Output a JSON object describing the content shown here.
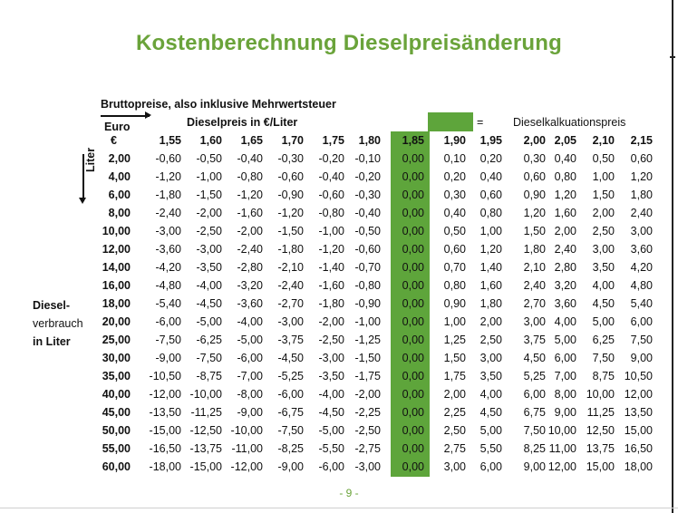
{
  "title": "Kostenberechnung Dieselpreisänderung",
  "subtitle": "Bruttopreise, also inklusive Mehrwertsteuer",
  "euro_label": "Euro",
  "euro_sign": "€",
  "price_label": "Dieselpreis in €/Liter",
  "legend": {
    "equals": "=",
    "text": "Dieselkalkuationspreis",
    "color": "#5ea53b"
  },
  "liter_label": "Liter",
  "row_label": {
    "line1": "Diesel-",
    "line2": "verbrauch",
    "line3": "in Liter"
  },
  "title_color": "#6aa33a",
  "footer": "- 9 -",
  "price_columns": [
    "1,55",
    "1,60",
    "1,65",
    "1,70",
    "1,75",
    "1,80",
    "1,85",
    "1,90",
    "1,95",
    "2,00",
    "2,05",
    "2,10",
    "2,15"
  ],
  "highlight_price": "1,85",
  "rows": [
    {
      "liter": "2,00",
      "values": [
        "-0,60",
        "-0,50",
        "-0,40",
        "-0,30",
        "-0,20",
        "-0,10",
        "0,00",
        "0,10",
        "0,20",
        "0,30",
        "0,40",
        "0,50",
        "0,60"
      ]
    },
    {
      "liter": "4,00",
      "values": [
        "-1,20",
        "-1,00",
        "-0,80",
        "-0,60",
        "-0,40",
        "-0,20",
        "0,00",
        "0,20",
        "0,40",
        "0,60",
        "0,80",
        "1,00",
        "1,20"
      ]
    },
    {
      "liter": "6,00",
      "values": [
        "-1,80",
        "-1,50",
        "-1,20",
        "-0,90",
        "-0,60",
        "-0,30",
        "0,00",
        "0,30",
        "0,60",
        "0,90",
        "1,20",
        "1,50",
        "1,80"
      ]
    },
    {
      "liter": "8,00",
      "values": [
        "-2,40",
        "-2,00",
        "-1,60",
        "-1,20",
        "-0,80",
        "-0,40",
        "0,00",
        "0,40",
        "0,80",
        "1,20",
        "1,60",
        "2,00",
        "2,40"
      ]
    },
    {
      "liter": "10,00",
      "values": [
        "-3,00",
        "-2,50",
        "-2,00",
        "-1,50",
        "-1,00",
        "-0,50",
        "0,00",
        "0,50",
        "1,00",
        "1,50",
        "2,00",
        "2,50",
        "3,00"
      ]
    },
    {
      "liter": "12,00",
      "values": [
        "-3,60",
        "-3,00",
        "-2,40",
        "-1,80",
        "-1,20",
        "-0,60",
        "0,00",
        "0,60",
        "1,20",
        "1,80",
        "2,40",
        "3,00",
        "3,60"
      ]
    },
    {
      "liter": "14,00",
      "values": [
        "-4,20",
        "-3,50",
        "-2,80",
        "-2,10",
        "-1,40",
        "-0,70",
        "0,00",
        "0,70",
        "1,40",
        "2,10",
        "2,80",
        "3,50",
        "4,20"
      ]
    },
    {
      "liter": "16,00",
      "values": [
        "-4,80",
        "-4,00",
        "-3,20",
        "-2,40",
        "-1,60",
        "-0,80",
        "0,00",
        "0,80",
        "1,60",
        "2,40",
        "3,20",
        "4,00",
        "4,80"
      ]
    },
    {
      "liter": "18,00",
      "values": [
        "-5,40",
        "-4,50",
        "-3,60",
        "-2,70",
        "-1,80",
        "-0,90",
        "0,00",
        "0,90",
        "1,80",
        "2,70",
        "3,60",
        "4,50",
        "5,40"
      ]
    },
    {
      "liter": "20,00",
      "values": [
        "-6,00",
        "-5,00",
        "-4,00",
        "-3,00",
        "-2,00",
        "-1,00",
        "0,00",
        "1,00",
        "2,00",
        "3,00",
        "4,00",
        "5,00",
        "6,00"
      ]
    },
    {
      "liter": "25,00",
      "values": [
        "-7,50",
        "-6,25",
        "-5,00",
        "-3,75",
        "-2,50",
        "-1,25",
        "0,00",
        "1,25",
        "2,50",
        "3,75",
        "5,00",
        "6,25",
        "7,50"
      ]
    },
    {
      "liter": "30,00",
      "values": [
        "-9,00",
        "-7,50",
        "-6,00",
        "-4,50",
        "-3,00",
        "-1,50",
        "0,00",
        "1,50",
        "3,00",
        "4,50",
        "6,00",
        "7,50",
        "9,00"
      ]
    },
    {
      "liter": "35,00",
      "values": [
        "-10,50",
        "-8,75",
        "-7,00",
        "-5,25",
        "-3,50",
        "-1,75",
        "0,00",
        "1,75",
        "3,50",
        "5,25",
        "7,00",
        "8,75",
        "10,50"
      ]
    },
    {
      "liter": "40,00",
      "values": [
        "-12,00",
        "-10,00",
        "-8,00",
        "-6,00",
        "-4,00",
        "-2,00",
        "0,00",
        "2,00",
        "4,00",
        "6,00",
        "8,00",
        "10,00",
        "12,00"
      ]
    },
    {
      "liter": "45,00",
      "values": [
        "-13,50",
        "-11,25",
        "-9,00",
        "-6,75",
        "-4,50",
        "-2,25",
        "0,00",
        "2,25",
        "4,50",
        "6,75",
        "9,00",
        "11,25",
        "13,50"
      ]
    },
    {
      "liter": "50,00",
      "values": [
        "-15,00",
        "-12,50",
        "-10,00",
        "-7,50",
        "-5,00",
        "-2,50",
        "0,00",
        "2,50",
        "5,00",
        "7,50",
        "10,00",
        "12,50",
        "15,00"
      ]
    },
    {
      "liter": "55,00",
      "values": [
        "-16,50",
        "-13,75",
        "-11,00",
        "-8,25",
        "-5,50",
        "-2,75",
        "0,00",
        "2,75",
        "5,50",
        "8,25",
        "11,00",
        "13,75",
        "16,50"
      ]
    },
    {
      "liter": "60,00",
      "values": [
        "-18,00",
        "-15,00",
        "-12,00",
        "-9,00",
        "-6,00",
        "-3,00",
        "0,00",
        "3,00",
        "6,00",
        "9,00",
        "12,00",
        "15,00",
        "18,00"
      ]
    }
  ]
}
